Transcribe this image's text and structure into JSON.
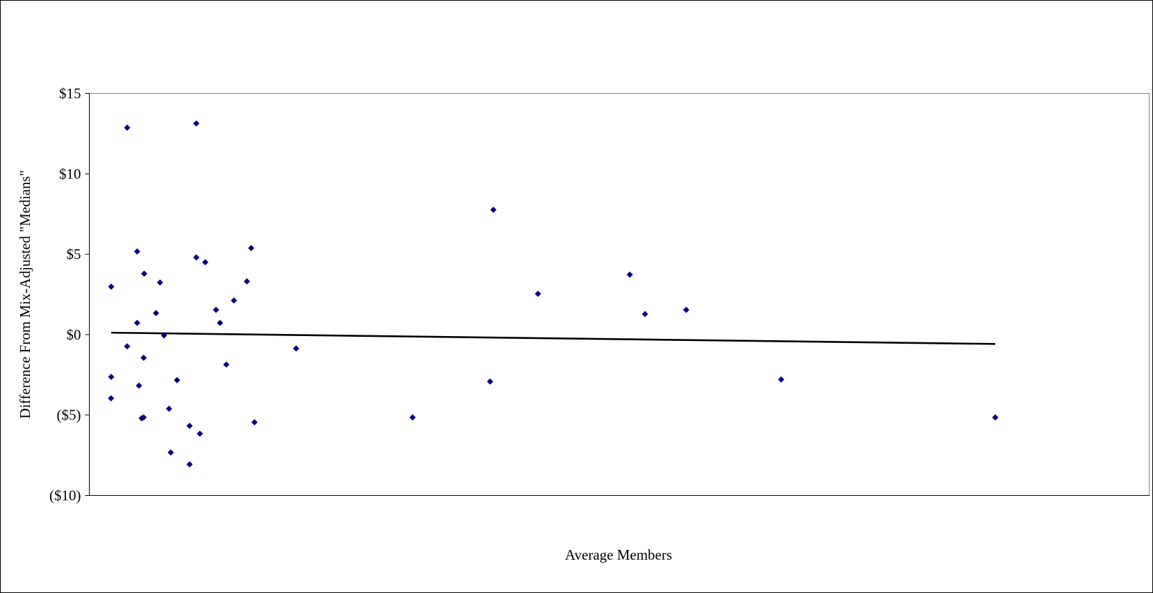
{
  "chart_data": {
    "type": "scatter",
    "title": "",
    "xlabel": "Average Members",
    "ylabel": "Difference From Mix-Adjusted \"Medians\"",
    "ylim": [
      -10,
      15
    ],
    "yticks": [
      {
        "value": 15,
        "label": "$15"
      },
      {
        "value": 10,
        "label": "$10"
      },
      {
        "value": 5,
        "label": "$5"
      },
      {
        "value": 0,
        "label": "$0"
      },
      {
        "value": -5,
        "label": "($5)"
      },
      {
        "value": -10,
        "label": "($10)"
      }
    ],
    "x_axis_ticks_visible": false,
    "grid": false,
    "legend": "none",
    "marker": "diamond",
    "series": [
      {
        "color": "#000080",
        "points": [
          {
            "x": 0.0,
            "y": 2.98
          },
          {
            "x": 0.0,
            "y": -2.63
          },
          {
            "x": -0.02,
            "y": -3.96
          },
          {
            "x": 1.78,
            "y": 12.87
          },
          {
            "x": 1.78,
            "y": -0.73
          },
          {
            "x": 2.9,
            "y": 5.17
          },
          {
            "x": 2.9,
            "y": 0.73
          },
          {
            "x": 3.1,
            "y": -3.17
          },
          {
            "x": 3.4,
            "y": -5.2
          },
          {
            "x": 3.62,
            "y": -5.15
          },
          {
            "x": 3.62,
            "y": -1.44
          },
          {
            "x": 3.68,
            "y": 3.79
          },
          {
            "x": 5.0,
            "y": 1.34
          },
          {
            "x": 5.45,
            "y": 3.24
          },
          {
            "x": 5.9,
            "y": -0.05
          },
          {
            "x": 6.45,
            "y": -4.61
          },
          {
            "x": 6.65,
            "y": -7.33
          },
          {
            "x": 7.35,
            "y": -2.83
          },
          {
            "x": 8.75,
            "y": -5.67
          },
          {
            "x": 8.75,
            "y": -8.07
          },
          {
            "x": 9.5,
            "y": 13.13
          },
          {
            "x": 9.5,
            "y": 4.8
          },
          {
            "x": 9.9,
            "y": -6.16
          },
          {
            "x": 10.5,
            "y": 4.5
          },
          {
            "x": 11.7,
            "y": 1.54
          },
          {
            "x": 12.15,
            "y": 0.73
          },
          {
            "x": 12.85,
            "y": -1.86
          },
          {
            "x": 13.7,
            "y": 2.12
          },
          {
            "x": 15.15,
            "y": 3.31
          },
          {
            "x": 15.63,
            "y": 5.38
          },
          {
            "x": 16.0,
            "y": -5.45
          },
          {
            "x": 20.65,
            "y": -0.86
          },
          {
            "x": 33.65,
            "y": -5.15
          },
          {
            "x": 42.3,
            "y": -2.92
          },
          {
            "x": 42.67,
            "y": 7.76
          },
          {
            "x": 47.65,
            "y": 2.54
          },
          {
            "x": 57.9,
            "y": 3.73
          },
          {
            "x": 59.6,
            "y": 1.28
          },
          {
            "x": 64.2,
            "y": 1.54
          },
          {
            "x": 74.8,
            "y": -2.79
          },
          {
            "x": 98.7,
            "y": -5.15
          }
        ]
      }
    ],
    "trendline": {
      "type": "linear",
      "color": "#000000",
      "points": [
        {
          "x": 0.0,
          "y": 0.12
        },
        {
          "x": 98.7,
          "y": -0.58
        }
      ]
    }
  }
}
